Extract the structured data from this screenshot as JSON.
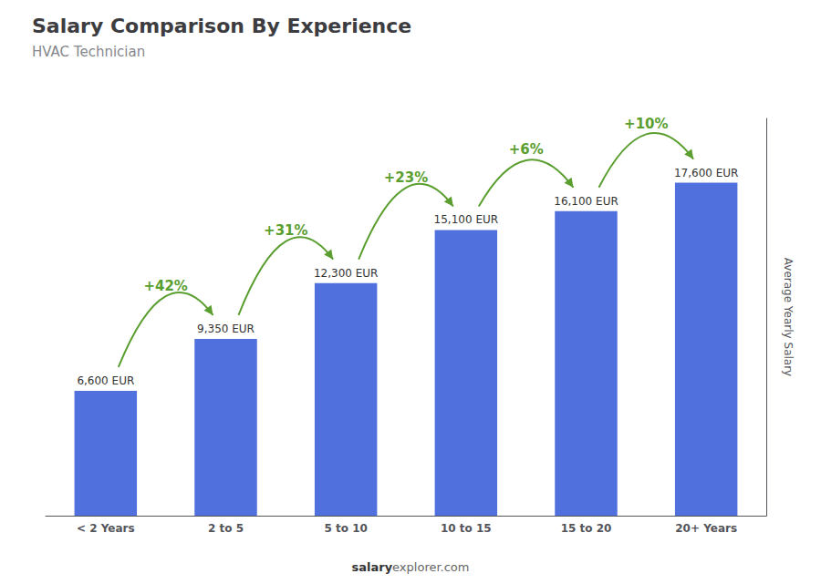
{
  "chart_data": {
    "type": "bar",
    "title": "Salary Comparison By Experience",
    "subtitle": "HVAC Technician",
    "categories": [
      "< 2 Years",
      "2 to 5",
      "5 to 10",
      "10 to 15",
      "15 to 20",
      "20+ Years"
    ],
    "values": [
      6600,
      9350,
      12300,
      15100,
      16100,
      17600
    ],
    "value_labels": [
      "6,600 EUR",
      "9,350 EUR",
      "12,300 EUR",
      "15,100 EUR",
      "16,100 EUR",
      "17,600 EUR"
    ],
    "data_labels": true,
    "ylabel": "Average Yearly Salary",
    "ylim": [
      0,
      21000
    ],
    "tick_labels": "x",
    "grid": false,
    "annotations": [
      null,
      "+42%",
      "+31%",
      "+23%",
      "+6%",
      "+10%"
    ],
    "footer": [
      "salary",
      "explorer.com"
    ]
  }
}
